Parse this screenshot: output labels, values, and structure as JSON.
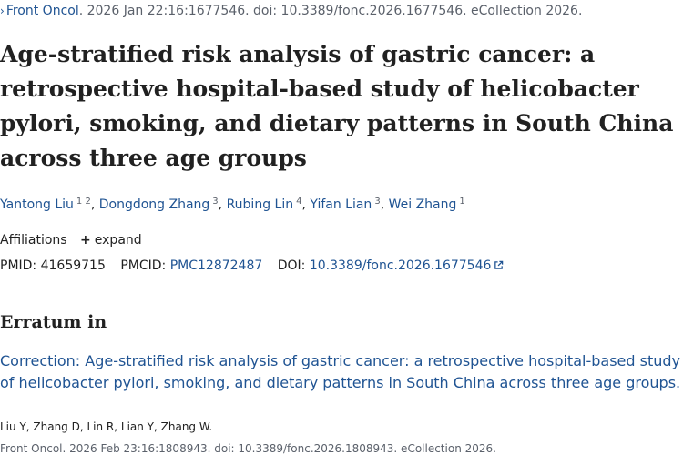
{
  "source": {
    "journal": "Front Oncol",
    "details": ". 2026 Jan 22:16:1677546. doi: 10.3389/fonc.2026.1677546. eCollection 2026."
  },
  "title": "Age-stratified risk analysis of gastric cancer: a retrospective hospital-based study of helicobacter pylori, smoking, and dietary patterns in South China across three age groups",
  "authors": [
    {
      "name": "Yantong Liu",
      "sup": "1 2"
    },
    {
      "name": "Dongdong Zhang",
      "sup": "3"
    },
    {
      "name": "Rubing Lin",
      "sup": "4"
    },
    {
      "name": "Yifan Lian",
      "sup": "3"
    },
    {
      "name": "Wei Zhang",
      "sup": "1"
    }
  ],
  "affiliations": {
    "label": "Affiliations",
    "expand_label": "expand"
  },
  "ids": {
    "pmid_label": "PMID:",
    "pmid": "41659715",
    "pmcid_label": "PMCID:",
    "pmcid": "PMC12872487",
    "doi_label": "DOI:",
    "doi": "10.3389/fonc.2026.1677546"
  },
  "erratum": {
    "heading": "Erratum in",
    "correction_title": "Correction: Age-stratified risk analysis of gastric cancer: a retrospective hospital-based study of helicobacter pylori, smoking, and dietary patterns in South China across three age groups.",
    "correction_authors": "Liu Y, Zhang D, Lin R, Lian Y, Zhang W.",
    "correction_source": "Front Oncol. 2026 Feb 23:16:1808943. doi: 10.3389/fonc.2026.1808943. eCollection 2026."
  },
  "colors": {
    "link": "#205493",
    "text": "#212121",
    "muted": "#5b616b"
  }
}
